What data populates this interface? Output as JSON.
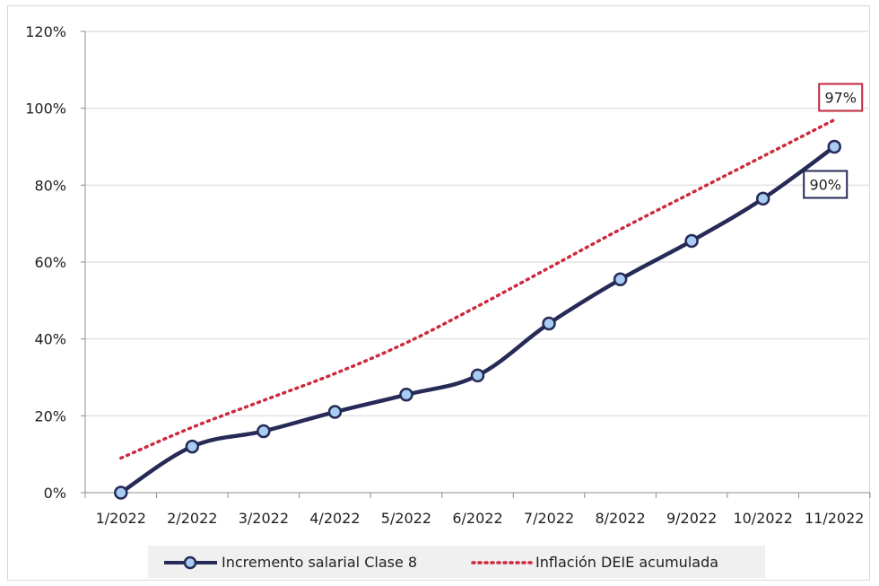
{
  "chart_data": {
    "type": "line",
    "title": "",
    "xlabel": "",
    "ylabel": "",
    "categories": [
      "1/2022",
      "2/2022",
      "3/2022",
      "4/2022",
      "5/2022",
      "6/2022",
      "7/2022",
      "8/2022",
      "9/2022",
      "10/2022",
      "11/2022"
    ],
    "ylim": [
      0,
      120
    ],
    "yticks": [
      "0%",
      "20%",
      "40%",
      "60%",
      "80%",
      "100%",
      "120%"
    ],
    "grid": true,
    "legend_position": "bottom",
    "series": [
      {
        "name": "Incremento salarial Clase 8",
        "style": "solid-with-markers",
        "color": "#262a56",
        "marker_fill": "#a8cdf2",
        "values": [
          0,
          12,
          16,
          21,
          25.5,
          30.5,
          44,
          55.5,
          65.5,
          76.5,
          90
        ]
      },
      {
        "name": "Inflación DEIE acumulada",
        "style": "dotted",
        "color": "#cc2a3e",
        "values": [
          9,
          17,
          24,
          31,
          39,
          48.5,
          58.5,
          68.5,
          78,
          87.5,
          97
        ]
      }
    ],
    "annotations": [
      {
        "text": "97%",
        "series": 1,
        "point": 10,
        "border_color": "#c0283d"
      },
      {
        "text": "90%",
        "series": 0,
        "point": 10,
        "border_color": "#262a56"
      }
    ]
  }
}
